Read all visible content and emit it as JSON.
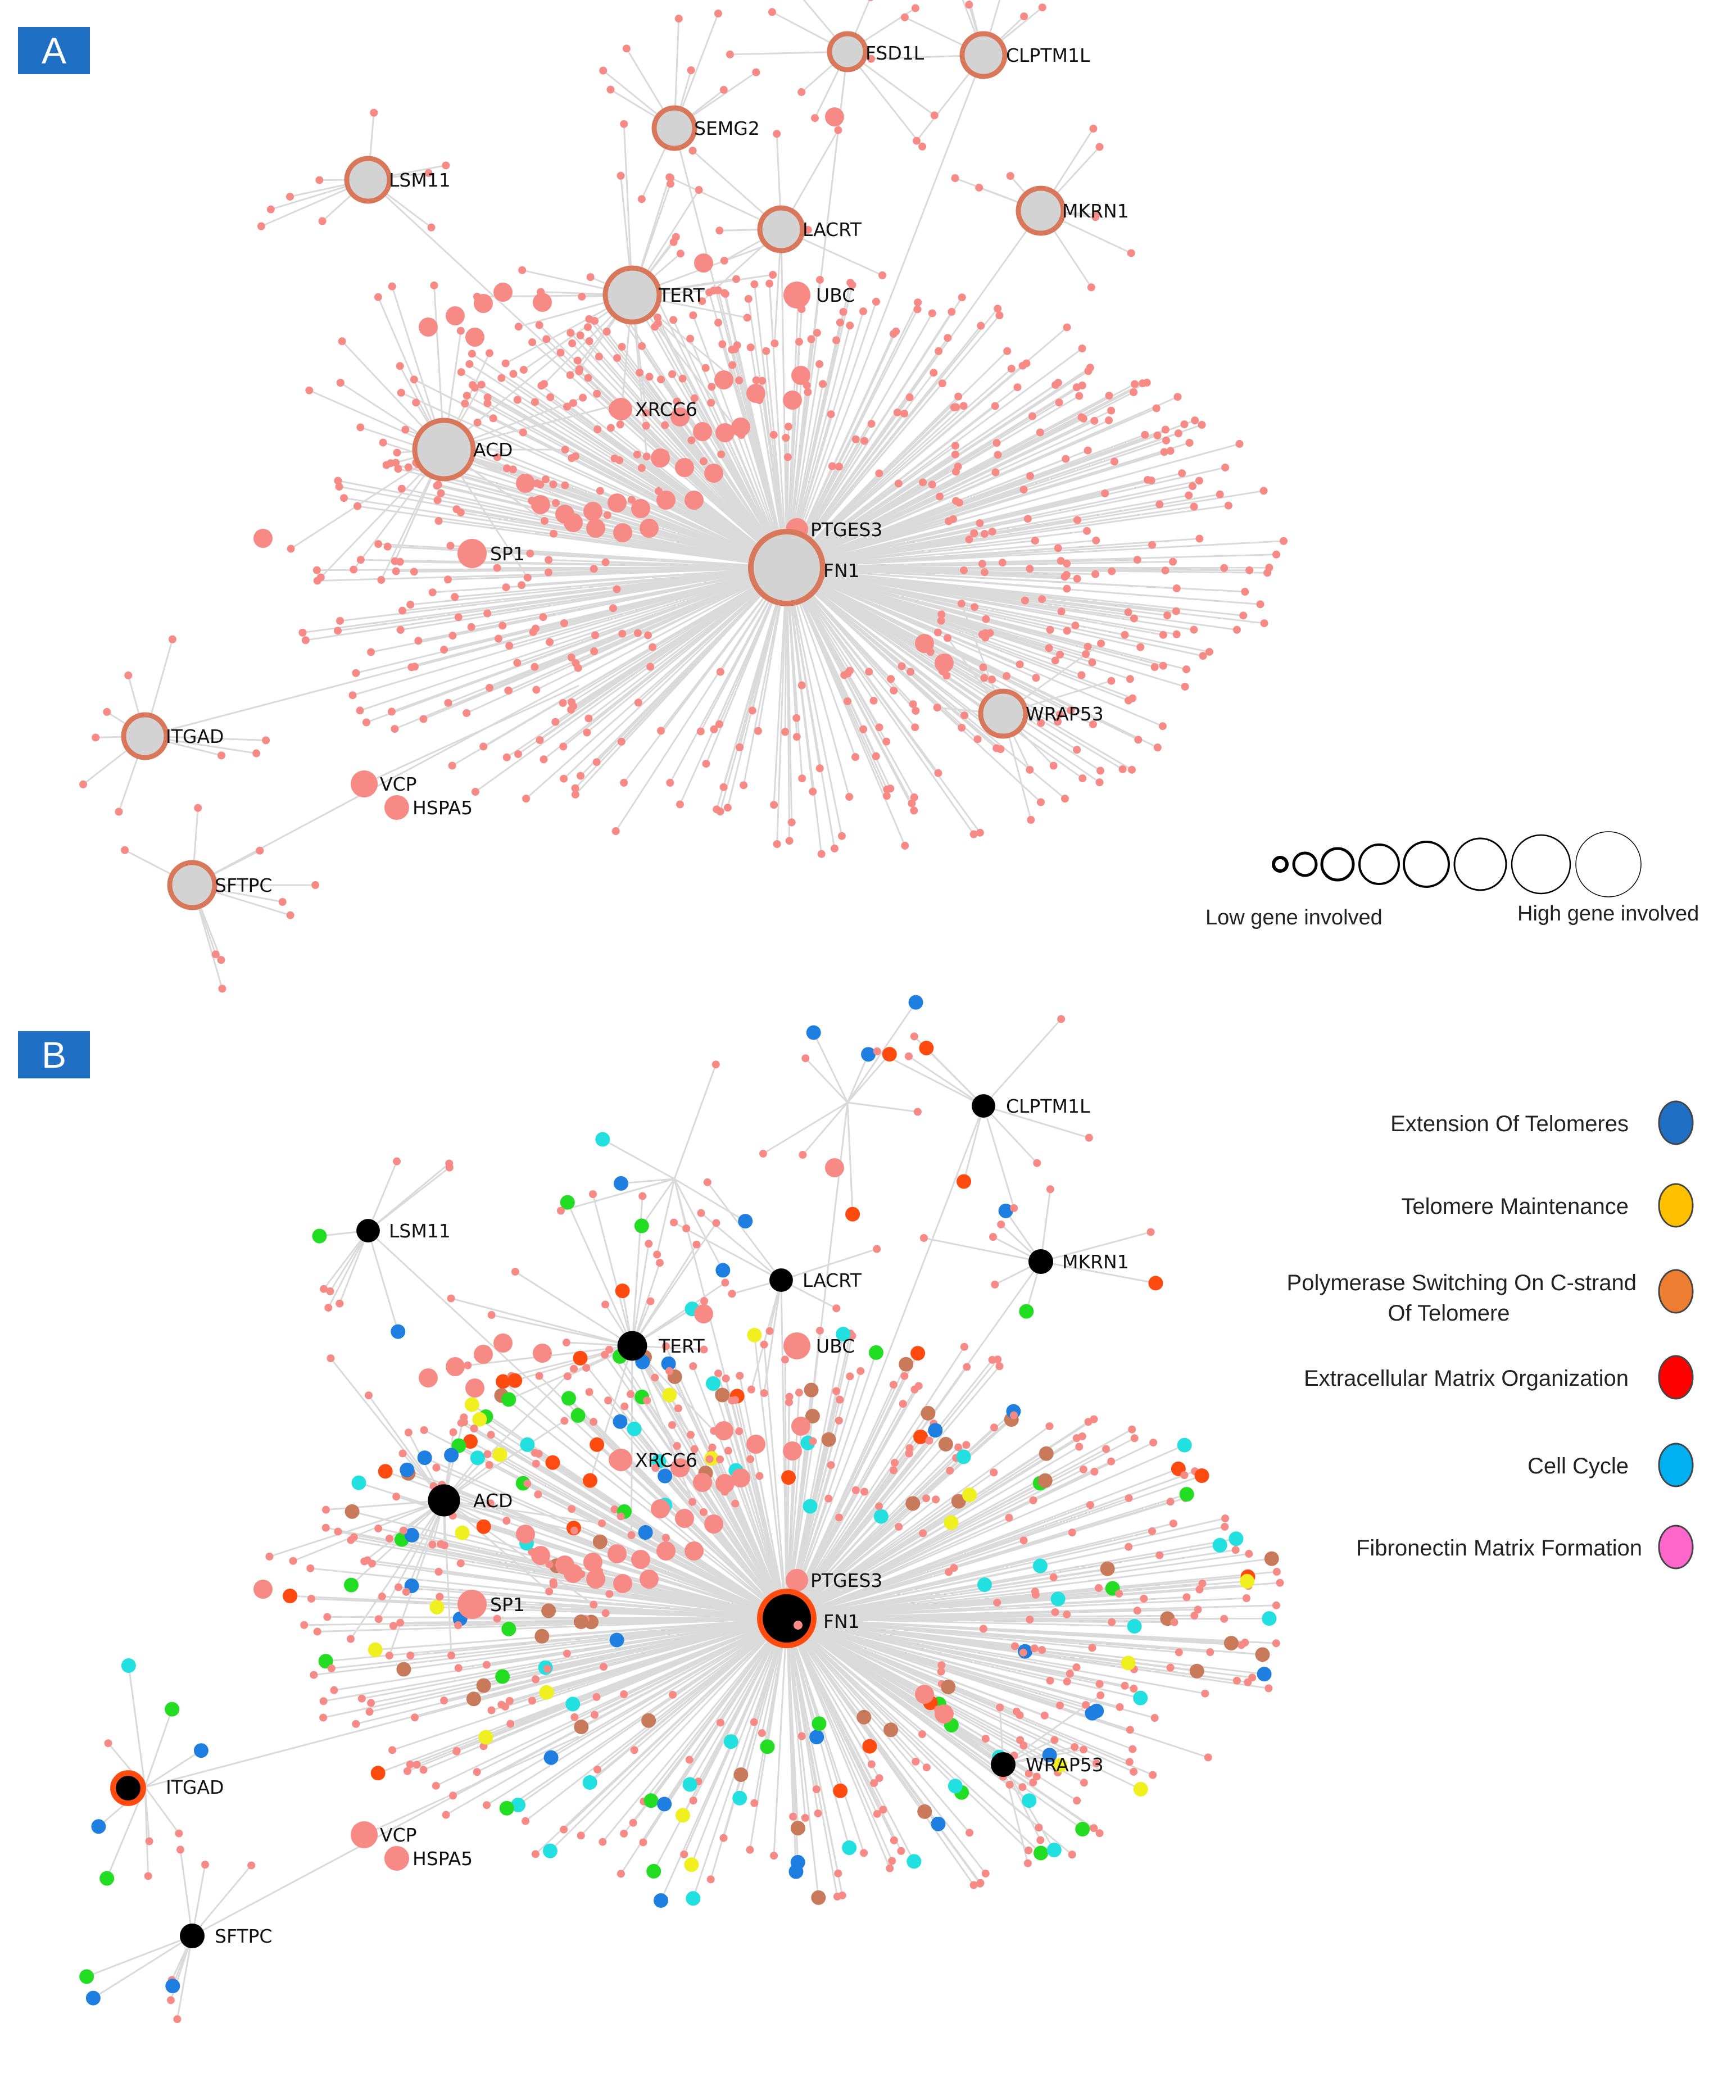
{
  "panel_a": {
    "badge": "A",
    "labels": {
      "fsd1l": "FSD1L",
      "clptm1l": "CLPTM1L",
      "semg2": "SEMG2",
      "lsm11": "LSM11",
      "lacrt": "LACRT",
      "mkrn1": "MKRN1",
      "tert": "TERT",
      "ubc": "UBC",
      "xrcc6": "XRCC6",
      "acd": "ACD",
      "ptges3": "PTGES3",
      "sp1": "SP1",
      "fn1": "FN1",
      "wrap53": "WRAP53",
      "itgad": "ITGAD",
      "vcp": "VCP",
      "hspa5": "HSPA5",
      "sftpc": "SFTPC"
    },
    "size_legend": {
      "low": "Low gene involved",
      "high": "High gene involved"
    }
  },
  "panel_b": {
    "badge": "B",
    "labels": {
      "clptm1l": "CLPTM1L",
      "lsm11": "LSM11",
      "lacrt": "LACRT",
      "mkrn1": "MKRN1",
      "tert": "TERT",
      "ubc": "UBC",
      "xrcc6": "XRCC6",
      "acd": "ACD",
      "ptges3": "PTGES3",
      "sp1": "SP1",
      "fn1": "FN1",
      "wrap53": "WRAP53",
      "itgad": "ITGAD",
      "vcp": "VCP",
      "hspa5": "HSPA5",
      "sftpc": "SFTPC"
    },
    "pathway_legend": [
      {
        "label": "Extension Of Telomeres",
        "color": "#1F6FC5"
      },
      {
        "label": "Telomere Maintenance",
        "color": "#FFC000"
      },
      {
        "label": "Polymerase Switching On C-strand",
        "label2": "Of Telomere",
        "color": "#ED7D31"
      },
      {
        "label": "Extracellular Matrix Organization",
        "color": "#FF0000"
      },
      {
        "label": "Cell Cycle",
        "color": "#00B0F0"
      },
      {
        "label": "Fibronectin Matrix Formation",
        "color": "#FF66CC"
      }
    ]
  },
  "colors": {
    "node_pink": "#F88A86",
    "hub_ring": "#D9775A",
    "hub_fill": "#D3D3D3",
    "edge": "#DADADA",
    "hub_black": "#000000",
    "green": "#22DD22",
    "cyan": "#22E0E0",
    "blue": "#1E7FE0",
    "yellow": "#F0F020",
    "brown": "#C97A5A",
    "orange": "#FF4A10"
  }
}
